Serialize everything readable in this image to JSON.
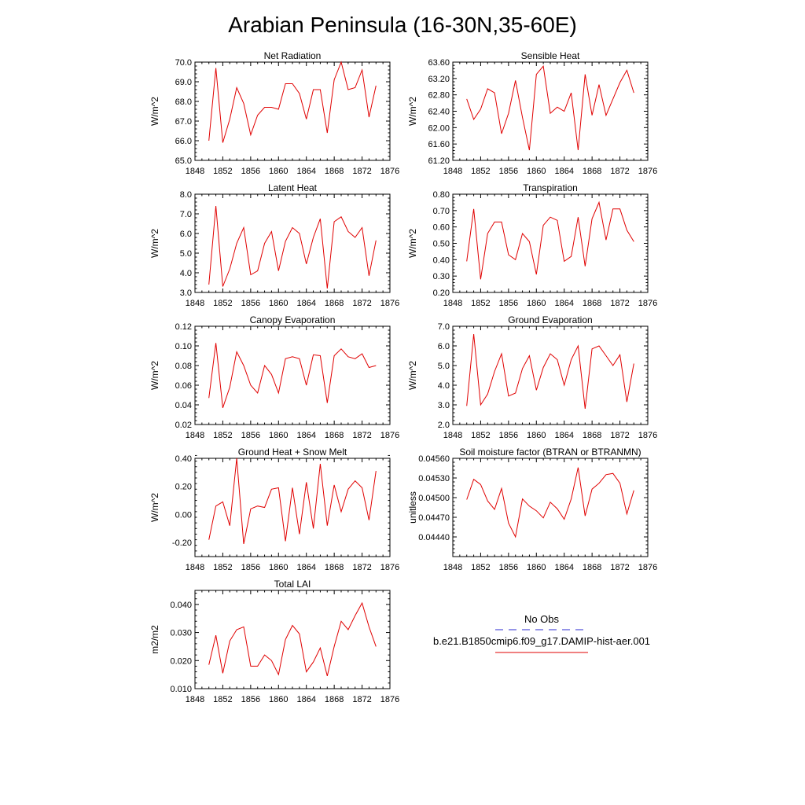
{
  "figure_title": "Arabian Peninsula (16-30N,35-60E)",
  "legend": {
    "entries": [
      {
        "label": "No Obs",
        "color": "#2b2bd0",
        "style": "dashed"
      },
      {
        "label": "b.e21.B1850cmip6.f09_g17.DAMIP-hist-aer.001",
        "color": "#e00000",
        "style": "solid"
      }
    ]
  },
  "chart_data": [
    {
      "type": "line",
      "title": "Net Radiation",
      "ylabel": "W/m^2",
      "xlim": [
        1848,
        1876
      ],
      "xticks": [
        1848,
        1852,
        1856,
        1860,
        1864,
        1868,
        1872,
        1876
      ],
      "ylim": [
        65.0,
        70.0
      ],
      "yticks": [
        "65.0",
        "66.0",
        "67.0",
        "68.0",
        "69.0",
        "70.0"
      ],
      "x": [
        1850,
        1851,
        1852,
        1853,
        1854,
        1855,
        1856,
        1857,
        1858,
        1859,
        1860,
        1861,
        1862,
        1863,
        1864,
        1865,
        1866,
        1867,
        1868,
        1869,
        1870,
        1871,
        1872,
        1873,
        1874
      ],
      "series": [
        {
          "color": "#e00000",
          "values": [
            66.0,
            69.7,
            65.9,
            67.1,
            68.7,
            67.9,
            66.3,
            67.3,
            67.7,
            67.7,
            67.6,
            68.9,
            68.9,
            68.4,
            67.1,
            68.6,
            68.6,
            66.4,
            69.1,
            70.0,
            68.6,
            68.7,
            69.6,
            67.2,
            68.8
          ]
        }
      ]
    },
    {
      "type": "line",
      "title": "Sensible Heat",
      "ylabel": "W/m^2",
      "xlim": [
        1848,
        1876
      ],
      "xticks": [
        1848,
        1852,
        1856,
        1860,
        1864,
        1868,
        1872,
        1876
      ],
      "ylim": [
        61.2,
        63.6
      ],
      "yticks": [
        "61.20",
        "61.60",
        "62.00",
        "62.40",
        "62.80",
        "63.20",
        "63.60"
      ],
      "x": [
        1850,
        1851,
        1852,
        1853,
        1854,
        1855,
        1856,
        1857,
        1858,
        1859,
        1860,
        1861,
        1862,
        1863,
        1864,
        1865,
        1866,
        1867,
        1868,
        1869,
        1870,
        1871,
        1872,
        1873,
        1874
      ],
      "series": [
        {
          "color": "#e00000",
          "values": [
            62.7,
            62.2,
            62.45,
            62.95,
            62.85,
            61.85,
            62.35,
            63.15,
            62.25,
            61.45,
            63.3,
            63.5,
            62.35,
            62.5,
            62.4,
            62.85,
            61.45,
            63.3,
            62.3,
            63.05,
            62.3,
            62.7,
            63.1,
            63.4,
            62.85
          ]
        }
      ]
    },
    {
      "type": "line",
      "title": "Latent Heat",
      "ylabel": "W/m^2",
      "xlim": [
        1848,
        1876
      ],
      "xticks": [
        1848,
        1852,
        1856,
        1860,
        1864,
        1868,
        1872,
        1876
      ],
      "ylim": [
        3.0,
        8.0
      ],
      "yticks": [
        "3.0",
        "4.0",
        "5.0",
        "6.0",
        "7.0",
        "8.0"
      ],
      "x": [
        1850,
        1851,
        1852,
        1853,
        1854,
        1855,
        1856,
        1857,
        1858,
        1859,
        1860,
        1861,
        1862,
        1863,
        1864,
        1865,
        1866,
        1867,
        1868,
        1869,
        1870,
        1871,
        1872,
        1873,
        1874
      ],
      "series": [
        {
          "color": "#e00000",
          "values": [
            3.4,
            7.4,
            3.3,
            4.2,
            5.5,
            6.3,
            3.9,
            4.1,
            5.5,
            6.1,
            4.1,
            5.6,
            6.3,
            6.0,
            4.45,
            5.8,
            6.75,
            3.2,
            6.6,
            6.85,
            6.1,
            5.8,
            6.3,
            3.85,
            5.65
          ]
        }
      ]
    },
    {
      "type": "line",
      "title": "Transpiration",
      "ylabel": "W/m^2",
      "xlim": [
        1848,
        1876
      ],
      "xticks": [
        1848,
        1852,
        1856,
        1860,
        1864,
        1868,
        1872,
        1876
      ],
      "ylim": [
        0.2,
        0.8
      ],
      "yticks": [
        "0.20",
        "0.30",
        "0.40",
        "0.50",
        "0.60",
        "0.70",
        "0.80"
      ],
      "x": [
        1850,
        1851,
        1852,
        1853,
        1854,
        1855,
        1856,
        1857,
        1858,
        1859,
        1860,
        1861,
        1862,
        1863,
        1864,
        1865,
        1866,
        1867,
        1868,
        1869,
        1870,
        1871,
        1872,
        1873,
        1874
      ],
      "series": [
        {
          "color": "#e00000",
          "values": [
            0.39,
            0.71,
            0.28,
            0.56,
            0.63,
            0.63,
            0.43,
            0.4,
            0.56,
            0.51,
            0.31,
            0.61,
            0.66,
            0.64,
            0.39,
            0.42,
            0.66,
            0.36,
            0.65,
            0.75,
            0.52,
            0.71,
            0.71,
            0.58,
            0.51
          ]
        }
      ]
    },
    {
      "type": "line",
      "title": "Canopy Evaporation",
      "ylabel": "W/m^2",
      "xlim": [
        1848,
        1876
      ],
      "xticks": [
        1848,
        1852,
        1856,
        1860,
        1864,
        1868,
        1872,
        1876
      ],
      "ylim": [
        0.02,
        0.12
      ],
      "yticks": [
        "0.02",
        "0.04",
        "0.06",
        "0.08",
        "0.10",
        "0.12"
      ],
      "x": [
        1850,
        1851,
        1852,
        1853,
        1854,
        1855,
        1856,
        1857,
        1858,
        1859,
        1860,
        1861,
        1862,
        1863,
        1864,
        1865,
        1866,
        1867,
        1868,
        1869,
        1870,
        1871,
        1872,
        1873,
        1874
      ],
      "series": [
        {
          "color": "#e00000",
          "values": [
            0.047,
            0.103,
            0.037,
            0.058,
            0.094,
            0.08,
            0.06,
            0.052,
            0.08,
            0.071,
            0.052,
            0.087,
            0.089,
            0.087,
            0.06,
            0.091,
            0.09,
            0.042,
            0.09,
            0.097,
            0.089,
            0.087,
            0.092,
            0.078,
            0.08
          ]
        }
      ]
    },
    {
      "type": "line",
      "title": "Ground Evaporation",
      "ylabel": "W/m^2",
      "xlim": [
        1848,
        1876
      ],
      "xticks": [
        1848,
        1852,
        1856,
        1860,
        1864,
        1868,
        1872,
        1876
      ],
      "ylim": [
        2.0,
        7.0
      ],
      "yticks": [
        "2.0",
        "3.0",
        "4.0",
        "5.0",
        "6.0",
        "7.0"
      ],
      "x": [
        1850,
        1851,
        1852,
        1853,
        1854,
        1855,
        1856,
        1857,
        1858,
        1859,
        1860,
        1861,
        1862,
        1863,
        1864,
        1865,
        1866,
        1867,
        1868,
        1869,
        1870,
        1871,
        1872,
        1873,
        1874
      ],
      "series": [
        {
          "color": "#e00000",
          "values": [
            2.95,
            6.6,
            3.0,
            3.55,
            4.7,
            5.6,
            3.45,
            3.6,
            4.85,
            5.5,
            3.75,
            4.9,
            5.6,
            5.3,
            4.0,
            5.3,
            6.0,
            2.8,
            5.85,
            6.0,
            5.5,
            5.0,
            5.55,
            3.15,
            5.1
          ]
        }
      ]
    },
    {
      "type": "line",
      "title": "Ground Heat + Snow Melt",
      "ylabel": "W/m^2",
      "xlim": [
        1848,
        1876
      ],
      "xticks": [
        1848,
        1852,
        1856,
        1860,
        1864,
        1868,
        1872,
        1876
      ],
      "ylim": [
        -0.3,
        0.4
      ],
      "yticks": [
        "-0.20",
        "0.00",
        "0.20",
        "0.40"
      ],
      "ytick_values": [
        -0.2,
        0.0,
        0.2,
        0.4
      ],
      "x": [
        1850,
        1851,
        1852,
        1853,
        1854,
        1855,
        1856,
        1857,
        1858,
        1859,
        1860,
        1861,
        1862,
        1863,
        1864,
        1865,
        1866,
        1867,
        1868,
        1869,
        1870,
        1871,
        1872,
        1873,
        1874
      ],
      "series": [
        {
          "color": "#e00000",
          "values": [
            -0.18,
            0.06,
            0.09,
            -0.08,
            0.4,
            -0.21,
            0.04,
            0.06,
            0.05,
            0.18,
            0.19,
            -0.19,
            0.19,
            -0.14,
            0.23,
            -0.1,
            0.36,
            -0.08,
            0.21,
            0.02,
            0.18,
            0.24,
            0.19,
            -0.04,
            0.31
          ]
        }
      ]
    },
    {
      "type": "line",
      "title": "Soil moisture factor (BTRAN or BTRANMN)",
      "ylabel": "unitless",
      "xlim": [
        1848,
        1876
      ],
      "xticks": [
        1848,
        1852,
        1856,
        1860,
        1864,
        1868,
        1872,
        1876
      ],
      "ylim": [
        0.0441,
        0.0456
      ],
      "yticks": [
        "0.04440",
        "0.04470",
        "0.04500",
        "0.04530",
        "0.04560"
      ],
      "ytick_values": [
        0.0444,
        0.0447,
        0.045,
        0.0453,
        0.0456
      ],
      "x": [
        1850,
        1851,
        1852,
        1853,
        1854,
        1855,
        1856,
        1857,
        1858,
        1859,
        1860,
        1861,
        1862,
        1863,
        1864,
        1865,
        1866,
        1867,
        1868,
        1869,
        1870,
        1871,
        1872,
        1873,
        1874
      ],
      "series": [
        {
          "color": "#e00000",
          "values": [
            0.04497,
            0.04528,
            0.0452,
            0.04495,
            0.04482,
            0.04514,
            0.04461,
            0.0444,
            0.04498,
            0.04487,
            0.0448,
            0.04469,
            0.04493,
            0.04483,
            0.04467,
            0.04498,
            0.04546,
            0.04472,
            0.04513,
            0.04522,
            0.04535,
            0.04537,
            0.04522,
            0.04475,
            0.04511
          ]
        }
      ]
    },
    {
      "type": "line",
      "title": "Total LAI",
      "ylabel": "m2/m2",
      "xlim": [
        1848,
        1876
      ],
      "xticks": [
        1848,
        1852,
        1856,
        1860,
        1864,
        1868,
        1872,
        1876
      ],
      "ylim": [
        0.01,
        0.045
      ],
      "yticks": [
        "0.010",
        "0.020",
        "0.030",
        "0.040"
      ],
      "ytick_values": [
        0.01,
        0.02,
        0.03,
        0.04
      ],
      "x": [
        1850,
        1851,
        1852,
        1853,
        1854,
        1855,
        1856,
        1857,
        1858,
        1859,
        1860,
        1861,
        1862,
        1863,
        1864,
        1865,
        1866,
        1867,
        1868,
        1869,
        1870,
        1871,
        1872,
        1873,
        1874
      ],
      "series": [
        {
          "color": "#e00000",
          "values": [
            0.0185,
            0.029,
            0.0155,
            0.027,
            0.031,
            0.032,
            0.018,
            0.018,
            0.022,
            0.02,
            0.015,
            0.0275,
            0.0325,
            0.0295,
            0.016,
            0.0195,
            0.0245,
            0.0145,
            0.025,
            0.034,
            0.031,
            0.036,
            0.0405,
            0.032,
            0.025
          ]
        }
      ]
    }
  ]
}
